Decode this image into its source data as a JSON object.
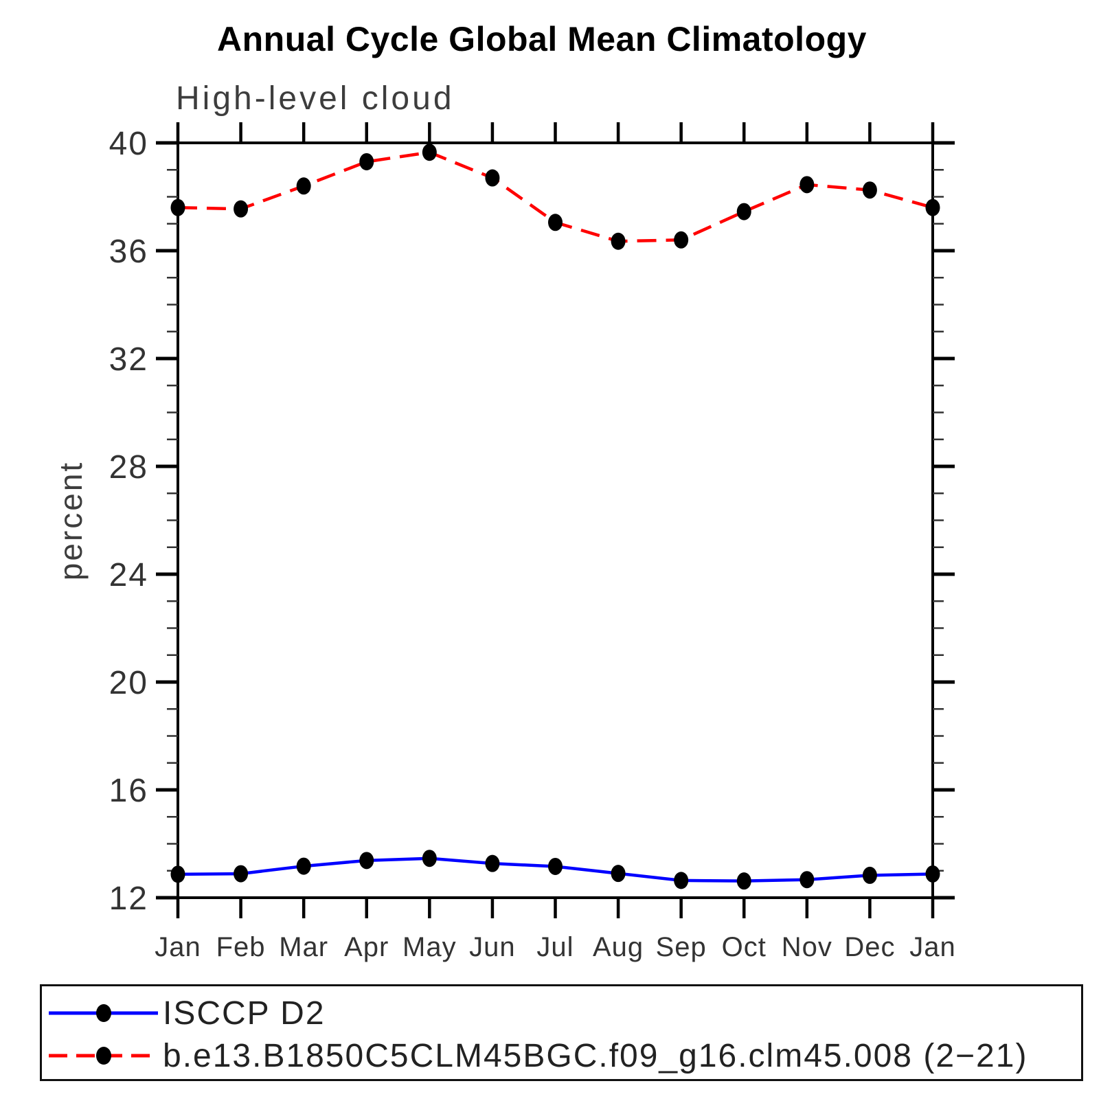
{
  "title": "Annual Cycle Global Mean Climatology",
  "subtitle": "High-level cloud",
  "ylabel": "percent",
  "legend": {
    "items": [
      {
        "label": "ISCCP D2",
        "line_color": "#0000ff",
        "line_style": "solid",
        "marker": "filled-circle",
        "marker_color": "#000000"
      },
      {
        "label": "b.e13.B1850C5CLM45BGC.f09_g16.clm45.008 (2−21)",
        "line_color": "#ff0000",
        "line_style": "dashed",
        "marker": "filled-circle",
        "marker_color": "#000000"
      }
    ]
  },
  "chart_data": {
    "type": "line",
    "title": "Annual Cycle Global Mean Climatology",
    "subtitle": "High-level cloud",
    "xlabel": "",
    "ylabel": "percent",
    "categories": [
      "Jan",
      "Feb",
      "Mar",
      "Apr",
      "May",
      "Jun",
      "Jul",
      "Aug",
      "Sep",
      "Oct",
      "Nov",
      "Dec",
      "Jan"
    ],
    "series": [
      {
        "name": "ISCCP D2",
        "color": "#0000ff",
        "line_style": "solid",
        "marker": "filled-circle",
        "marker_color": "#000000",
        "values": [
          12.87,
          12.89,
          13.17,
          13.38,
          13.46,
          13.27,
          13.16,
          12.9,
          12.64,
          12.62,
          12.67,
          12.83,
          12.88
        ]
      },
      {
        "name": "b.e13.B1850C5CLM45BGC.f09_g16.clm45.008 (2−21)",
        "color": "#ff0000",
        "line_style": "dashed",
        "marker": "filled-circle",
        "marker_color": "#000000",
        "values": [
          37.6,
          37.55,
          38.4,
          39.3,
          39.65,
          38.7,
          37.05,
          36.35,
          36.4,
          37.45,
          38.45,
          38.25,
          37.6
        ]
      }
    ],
    "ylim": [
      12,
      40
    ],
    "y_major_ticks": [
      12,
      16,
      20,
      24,
      28,
      32,
      36,
      40
    ],
    "y_minor_step": 1,
    "grid": false,
    "legend_position": "bottom",
    "axis_color": "#000000",
    "tick_label_color": "#333333"
  }
}
